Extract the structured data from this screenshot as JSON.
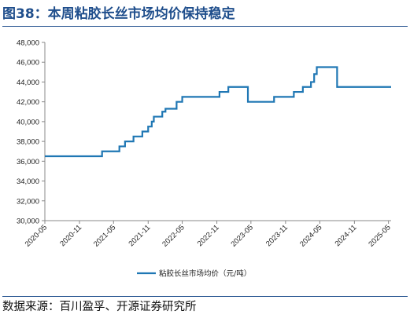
{
  "header": {
    "title": "图38：本周粘胶长丝市场均价保持稳定"
  },
  "footer": {
    "source": "数据来源：百川盈孚、开源证券研究所"
  },
  "colors": {
    "accent": "#1f4e8c",
    "series": "#1f77b4"
  },
  "chart_data": {
    "type": "line",
    "title": "",
    "xlabel": "",
    "ylabel": "",
    "ylim": [
      30000,
      48000
    ],
    "y_ticks": [
      30000,
      32000,
      34000,
      36000,
      38000,
      40000,
      42000,
      44000,
      46000,
      48000
    ],
    "y_tick_labels": [
      "30,000",
      "32,000",
      "34,000",
      "36,000",
      "38,000",
      "40,000",
      "42,000",
      "44,000",
      "46,000",
      "48,000"
    ],
    "x_range": [
      "2020-05-01",
      "2025-05-15"
    ],
    "x_ticks": [
      "2020-05",
      "2020-11",
      "2021-05",
      "2021-11",
      "2022-05",
      "2022-11",
      "2023-05",
      "2023-11",
      "2024-05",
      "2024-11",
      "2025-05"
    ],
    "grid": false,
    "legend_position": "bottom-center",
    "series": [
      {
        "name": "粘胶长丝市场均价（元/吨）",
        "step": true,
        "points": [
          [
            "2020-05-01",
            36500
          ],
          [
            "2021-03-01",
            37000
          ],
          [
            "2021-06-01",
            37500
          ],
          [
            "2021-07-01",
            38000
          ],
          [
            "2021-08-15",
            38500
          ],
          [
            "2021-10-01",
            39000
          ],
          [
            "2021-11-01",
            39500
          ],
          [
            "2021-11-20",
            40000
          ],
          [
            "2021-12-01",
            40500
          ],
          [
            "2022-01-15",
            41000
          ],
          [
            "2022-02-01",
            41300
          ],
          [
            "2022-04-01",
            42000
          ],
          [
            "2022-05-01",
            42500
          ],
          [
            "2022-11-15",
            43000
          ],
          [
            "2023-01-01",
            43500
          ],
          [
            "2023-04-15",
            42000
          ],
          [
            "2023-09-01",
            42500
          ],
          [
            "2023-12-15",
            43000
          ],
          [
            "2024-02-01",
            43500
          ],
          [
            "2024-03-15",
            44000
          ],
          [
            "2024-04-01",
            44800
          ],
          [
            "2024-04-15",
            45500
          ],
          [
            "2024-08-01",
            43500
          ],
          [
            "2025-05-15",
            43500
          ]
        ]
      }
    ]
  }
}
